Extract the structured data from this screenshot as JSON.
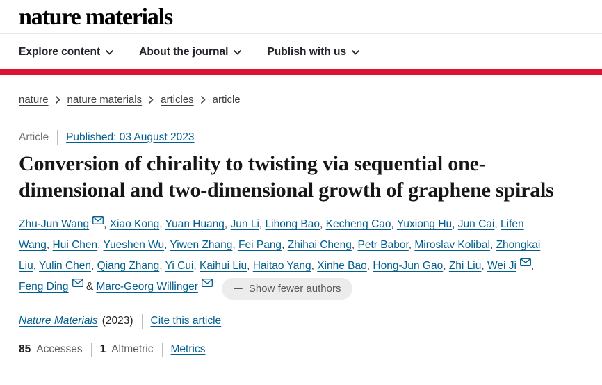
{
  "brand": {
    "logo": "nature materials",
    "red_bar_color": "#dc1332",
    "link_color": "#025e8d"
  },
  "nav": {
    "items": [
      {
        "label": "Explore content"
      },
      {
        "label": "About the journal"
      },
      {
        "label": "Publish with us"
      }
    ],
    "chevron_icon": "chevron-down-icon"
  },
  "breadcrumb": {
    "items": [
      {
        "label": "nature",
        "link": true
      },
      {
        "label": "nature materials",
        "link": true
      },
      {
        "label": "articles",
        "link": true
      },
      {
        "label": "article",
        "link": false
      }
    ],
    "separator_icon": "chevron-right-icon"
  },
  "article": {
    "type_label": "Article",
    "published": "Published: 03 August 2023",
    "title": "Conversion of chirality to twisting via sequential one-dimensional and two-dimensional growth of graphene spirals"
  },
  "authors": {
    "email_icon": "envelope-icon",
    "list": [
      {
        "name": "Zhu-Jun Wang",
        "email": true
      },
      {
        "name": "Xiao Kong",
        "email": false
      },
      {
        "name": "Yuan Huang",
        "email": false
      },
      {
        "name": "Jun Li",
        "email": false
      },
      {
        "name": "Lihong Bao",
        "email": false
      },
      {
        "name": "Kecheng Cao",
        "email": false
      },
      {
        "name": "Yuxiong Hu",
        "email": false
      },
      {
        "name": "Jun Cai",
        "email": false
      },
      {
        "name": "Lifen Wang",
        "email": false
      },
      {
        "name": "Hui Chen",
        "email": false
      },
      {
        "name": "Yueshen Wu",
        "email": false
      },
      {
        "name": "Yiwen Zhang",
        "email": false
      },
      {
        "name": "Fei Pang",
        "email": false
      },
      {
        "name": "Zhihai Cheng",
        "email": false
      },
      {
        "name": "Petr Babor",
        "email": false
      },
      {
        "name": "Miroslav Kolibal",
        "email": false
      },
      {
        "name": "Zhongkai Liu",
        "email": false
      },
      {
        "name": "Yulin Chen",
        "email": false
      },
      {
        "name": "Qiang Zhang",
        "email": false
      },
      {
        "name": "Yi Cui",
        "email": false
      },
      {
        "name": "Kaihui Liu",
        "email": false
      },
      {
        "name": "Haitao Yang",
        "email": false
      },
      {
        "name": "Xinhe Bao",
        "email": false
      },
      {
        "name": "Hong-Jun Gao",
        "email": false
      },
      {
        "name": "Zhi Liu",
        "email": false
      },
      {
        "name": "Wei Ji",
        "email": true
      },
      {
        "name": "Feng Ding",
        "email": true
      },
      {
        "name": "Marc-Georg Willinger",
        "email": true
      }
    ],
    "show_fewer_label": "Show fewer authors",
    "minus_icon": "minus-icon"
  },
  "citation": {
    "journal": "Nature Materials",
    "year": "(2023)",
    "cite_link": "Cite this article"
  },
  "metrics": {
    "accesses_value": "85",
    "accesses_label": "Accesses",
    "altmetric_value": "1",
    "altmetric_label": "Altmetric",
    "metrics_link": "Metrics"
  }
}
